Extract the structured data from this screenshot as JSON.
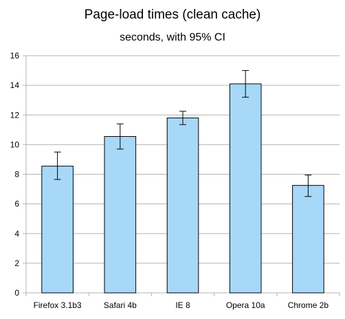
{
  "chart_data": {
    "type": "bar",
    "title": "Page-load times (clean cache)",
    "subtitle": "seconds, with 95% CI",
    "xlabel": "",
    "ylabel": "",
    "categories": [
      "Firefox 3.1b3",
      "Safari 4b",
      "IE 8",
      "Opera 10a",
      "Chrome 2b"
    ],
    "values": [
      8.55,
      10.55,
      11.8,
      14.1,
      7.25
    ],
    "ci_low": [
      7.65,
      9.7,
      11.35,
      13.2,
      6.5
    ],
    "ci_high": [
      9.5,
      11.4,
      12.25,
      15.0,
      7.95
    ],
    "ylim": [
      0,
      16
    ],
    "yticks": [
      0,
      2,
      4,
      6,
      8,
      10,
      12,
      14,
      16
    ],
    "grid": true,
    "legend": "none",
    "colors": {
      "bar_fill": "#a8d8f8",
      "bar_stroke": "#000000",
      "grid": "#b3b3b3",
      "axis": "#b3b3b3"
    }
  }
}
